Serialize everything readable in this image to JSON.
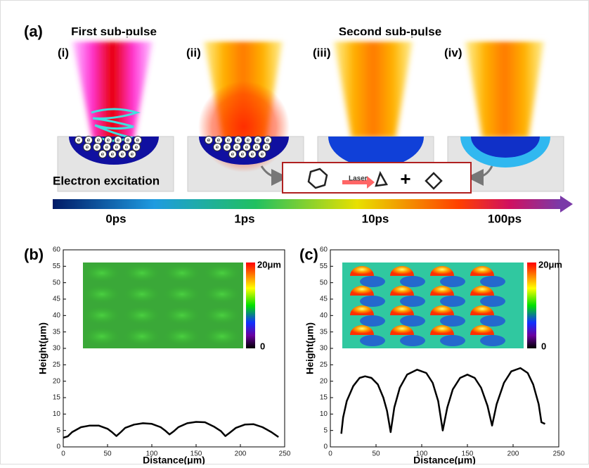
{
  "panel_a": {
    "label": "(a)",
    "first_title": "First sub-pulse",
    "second_title": "Second sub-pulse",
    "steps": [
      "(i)",
      "(ii)",
      "(iii)",
      "(iv)"
    ],
    "electron_label": "Electron excitation",
    "electron_symbol": "e",
    "laser_label": "Laser",
    "plus": "+",
    "timeline": [
      "0ps",
      "1ps",
      "10ps",
      "100ps"
    ]
  },
  "chart_data": [
    {
      "type": "line",
      "panel_label": "(b)",
      "x_label": "Distance(μm)",
      "y_label": "Height(μm)",
      "colorbar_labels": [
        "20μm",
        "0"
      ],
      "xlim": [
        0,
        250
      ],
      "ylim": [
        0,
        60
      ],
      "xticks": [
        0,
        50,
        100,
        150,
        200,
        250
      ],
      "yticks": [
        0,
        5,
        10,
        15,
        20,
        25,
        30,
        35,
        40,
        45,
        50,
        55,
        60
      ],
      "x": [
        0,
        5,
        10,
        20,
        30,
        40,
        50,
        55,
        60,
        65,
        70,
        80,
        90,
        100,
        110,
        115,
        120,
        125,
        130,
        140,
        150,
        160,
        170,
        178,
        183,
        188,
        195,
        205,
        215,
        225,
        235,
        243
      ],
      "series": [
        {
          "color": "#000000",
          "values": [
            2.8,
            3.2,
            4.5,
            6,
            6.5,
            6.5,
            5.5,
            4.5,
            3.3,
            4.5,
            5.8,
            6.8,
            7.2,
            7,
            6,
            5,
            3.8,
            4.8,
            6,
            7.2,
            7.6,
            7.5,
            6.2,
            4.8,
            3.3,
            4.3,
            5.8,
            6.8,
            6.9,
            6,
            4.5,
            3
          ]
        }
      ]
    },
    {
      "type": "line",
      "panel_label": "(c)",
      "x_label": "Distance(μm)",
      "y_label": "Height(μm)",
      "colorbar_labels": [
        "20μm",
        "0"
      ],
      "xlim": [
        0,
        250
      ],
      "ylim": [
        0,
        60
      ],
      "xticks": [
        0,
        50,
        100,
        150,
        200,
        250
      ],
      "yticks": [
        0,
        5,
        10,
        15,
        20,
        25,
        30,
        35,
        40,
        45,
        50,
        55,
        60
      ],
      "x": [
        12,
        14,
        18,
        25,
        32,
        38,
        45,
        52,
        58,
        62,
        66,
        70,
        76,
        84,
        95,
        105,
        112,
        118,
        123,
        128,
        134,
        142,
        150,
        158,
        165,
        172,
        177,
        182,
        190,
        198,
        208,
        216,
        222,
        228,
        231,
        235
      ],
      "series": [
        {
          "color": "#000000",
          "values": [
            4,
            9,
            14,
            18.5,
            21,
            21.5,
            21,
            19,
            15,
            11,
            4.5,
            12,
            18,
            22,
            23.5,
            22.5,
            19.5,
            14,
            5,
            12,
            17.5,
            21,
            22,
            21,
            18,
            12.5,
            6.5,
            13,
            19.5,
            23,
            24,
            22.5,
            19,
            13,
            7.5,
            7
          ]
        }
      ]
    }
  ]
}
